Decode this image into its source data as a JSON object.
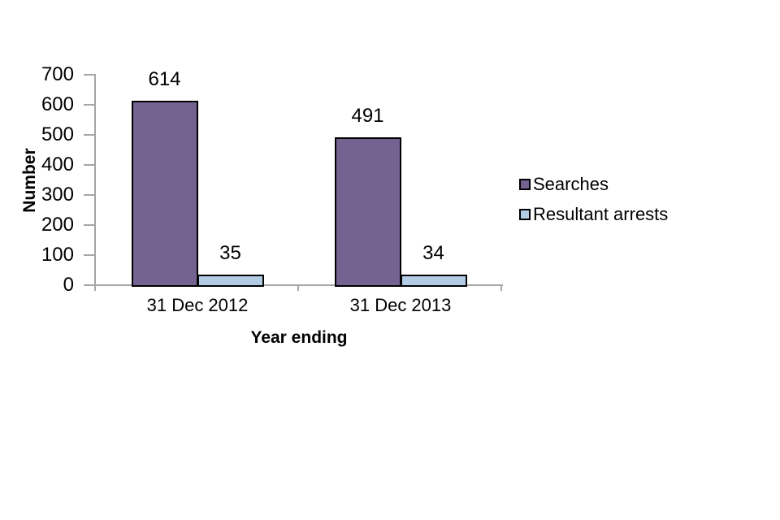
{
  "chart_data": {
    "type": "bar",
    "categories": [
      "31 Dec 2012",
      "31 Dec 2013"
    ],
    "series": [
      {
        "name": "Searches",
        "color": "#746390",
        "values": [
          614,
          491
        ]
      },
      {
        "name": "Resultant arrests",
        "color": "#B3CCE6",
        "values": [
          35,
          34
        ]
      }
    ],
    "data_labels": [
      "614",
      "35",
      "491",
      "34"
    ],
    "xlabel": "Year ending",
    "ylabel": "Number",
    "ylim": [
      0,
      700
    ],
    "yticks": [
      0,
      100,
      200,
      300,
      400,
      500,
      600,
      700
    ],
    "grid": false,
    "legend_position": "right",
    "bar_border_color": "#000000",
    "axis_color": "#A6A6A6",
    "background_color": "#FFFFFF"
  }
}
